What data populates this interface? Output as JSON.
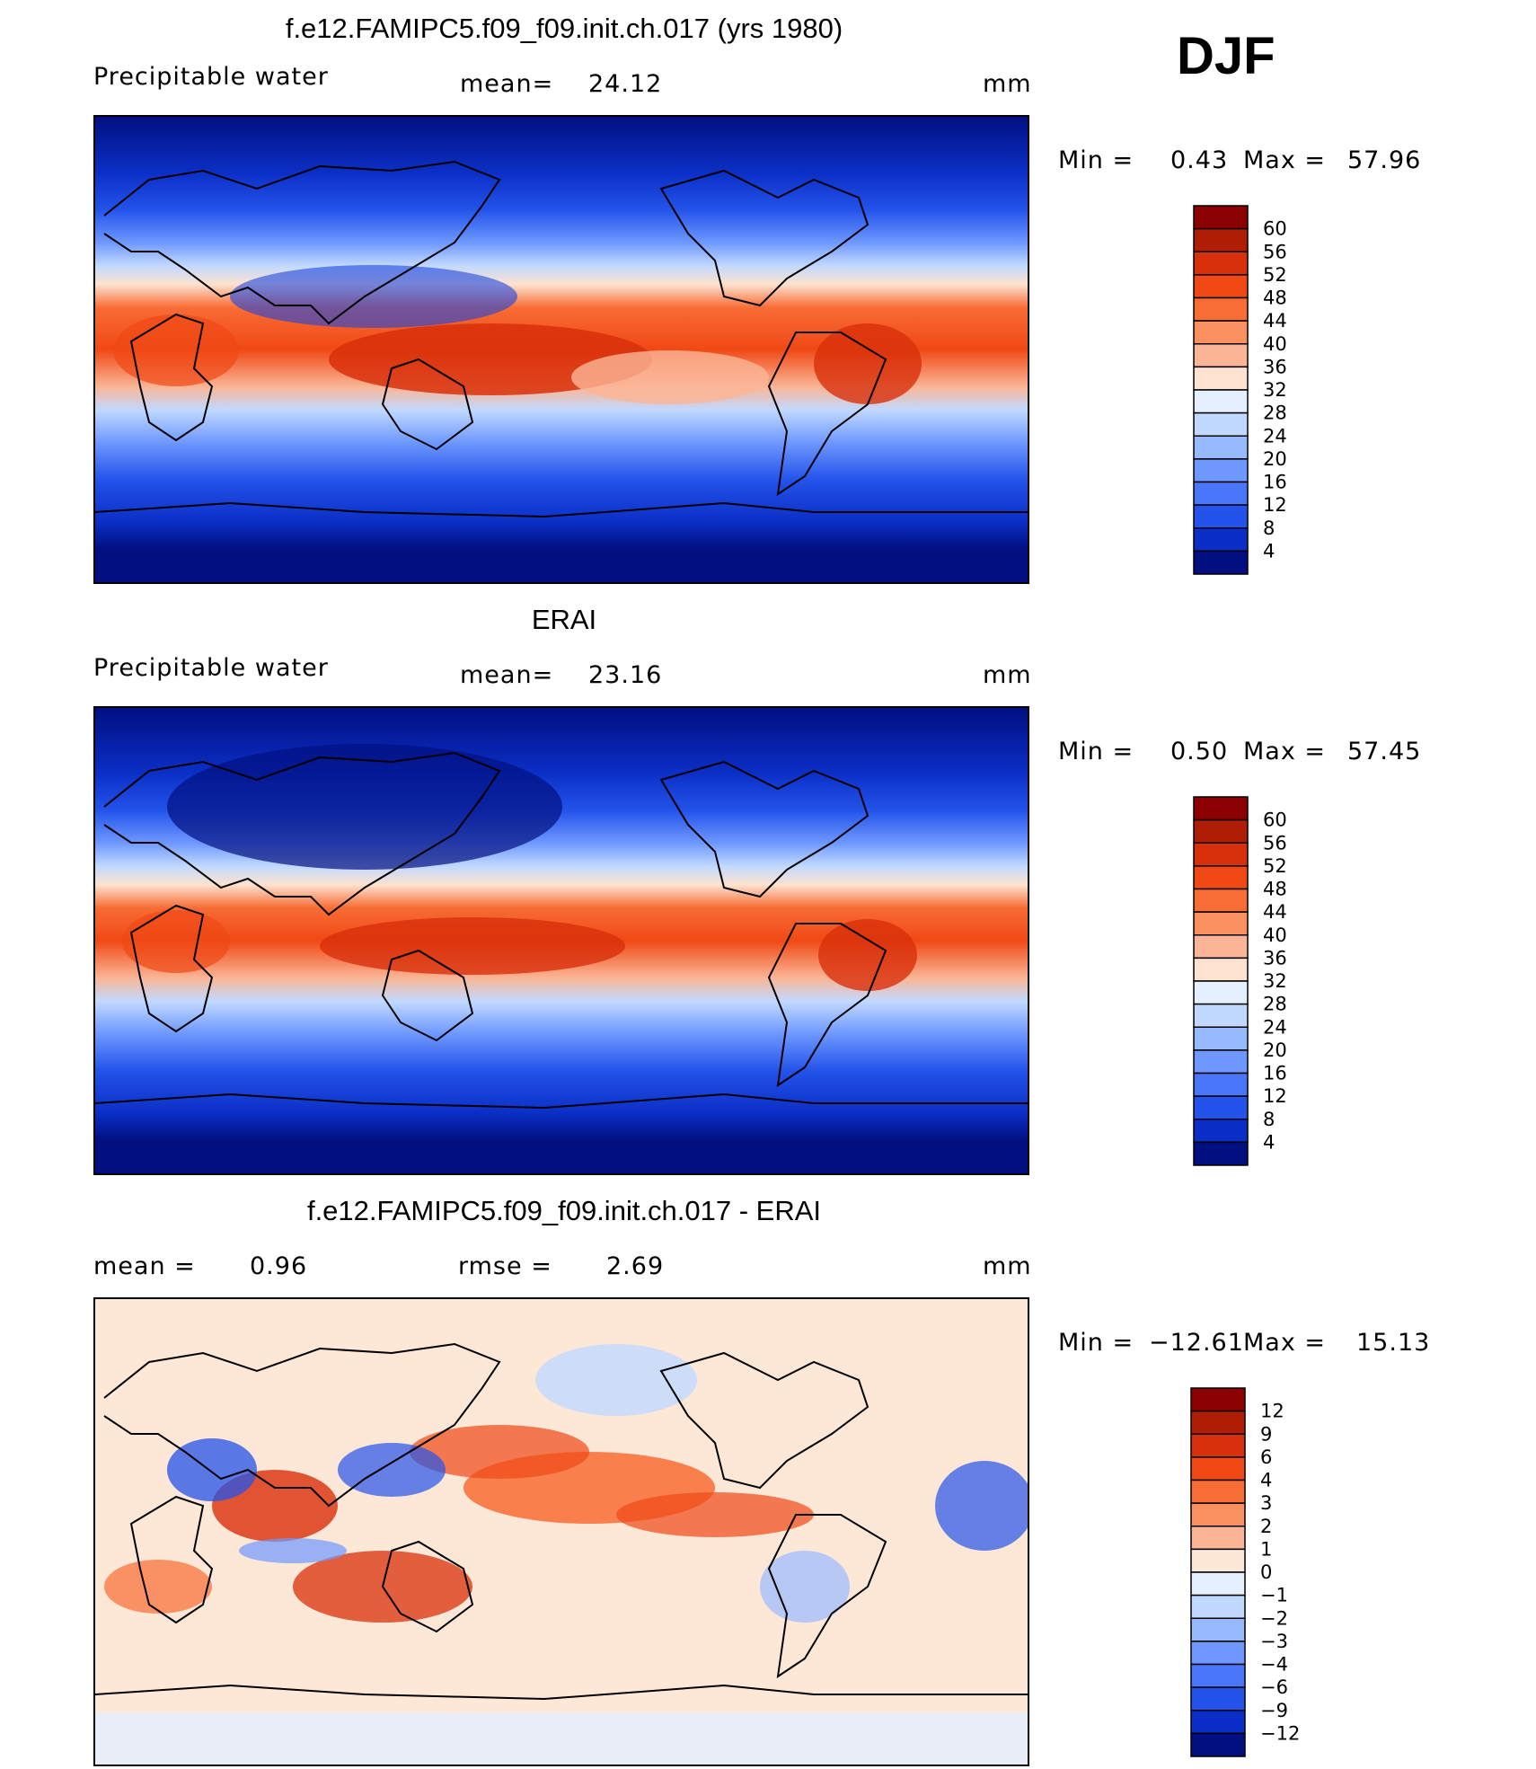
{
  "season": "DJF",
  "units": "mm",
  "panels": [
    {
      "id": "model",
      "title": "f.e12.FAMIPC5.f09_f09.init.ch.017 (yrs 1980)",
      "variable": "Precipitable water",
      "stat1_label": "mean=",
      "stat1_value": "24.12",
      "stat2_label": "",
      "stat2_value": "",
      "units": "mm",
      "min_label": "Min =",
      "min_value": "0.43",
      "max_label": "Max =",
      "max_value": "57.96",
      "colorbar": {
        "levels": [
          "60",
          "56",
          "52",
          "48",
          "44",
          "40",
          "36",
          "32",
          "28",
          "24",
          "20",
          "16",
          "12",
          "8",
          "4"
        ],
        "colors": [
          "#8b0000",
          "#b01d05",
          "#d8300a",
          "#f04915",
          "#f86c35",
          "#fa8f60",
          "#fbb596",
          "#fde2cf",
          "#e4efff",
          "#c1d9ff",
          "#97baff",
          "#6e98ff",
          "#4a76fb",
          "#2353ea",
          "#0b2fc6",
          "#010f80"
        ]
      }
    },
    {
      "id": "obs",
      "title": "ERAI",
      "variable": "Precipitable water",
      "stat1_label": "mean=",
      "stat1_value": "23.16",
      "stat2_label": "",
      "stat2_value": "",
      "units": "mm",
      "min_label": "Min =",
      "min_value": "0.50",
      "max_label": "Max =",
      "max_value": "57.45",
      "colorbar": {
        "levels": [
          "60",
          "56",
          "52",
          "48",
          "44",
          "40",
          "36",
          "32",
          "28",
          "24",
          "20",
          "16",
          "12",
          "8",
          "4"
        ],
        "colors": [
          "#8b0000",
          "#b01d05",
          "#d8300a",
          "#f04915",
          "#f86c35",
          "#fa8f60",
          "#fbb596",
          "#fde2cf",
          "#e4efff",
          "#c1d9ff",
          "#97baff",
          "#6e98ff",
          "#4a76fb",
          "#2353ea",
          "#0b2fc6",
          "#010f80"
        ]
      }
    },
    {
      "id": "diff",
      "title": "f.e12.FAMIPC5.f09_f09.init.ch.017 - ERAI",
      "variable": "",
      "stat1_label": "mean =",
      "stat1_value": "0.96",
      "stat2_label": "rmse =",
      "stat2_value": "2.69",
      "units": "mm",
      "min_label": "Min =",
      "min_value": "−12.61",
      "max_label": "Max =",
      "max_value": "15.13",
      "colorbar": {
        "levels": [
          "12",
          "9",
          "6",
          "4",
          "3",
          "2",
          "1",
          "0",
          "−1",
          "−2",
          "−3",
          "−4",
          "−6",
          "−9",
          "−12"
        ],
        "colors": [
          "#8b0000",
          "#b01d05",
          "#d8300a",
          "#f04915",
          "#f86c35",
          "#fa8f60",
          "#fbb596",
          "#fde7d6",
          "#e4efff",
          "#c1d9ff",
          "#97baff",
          "#6e98ff",
          "#4a76fb",
          "#2353ea",
          "#0b2fc6",
          "#010f80"
        ]
      }
    }
  ],
  "chart_data": [
    {
      "type": "heatmap",
      "title": "f.e12.FAMIPC5.f09_f09.init.ch.017 (yrs 1980)",
      "variable": "Precipitable water",
      "units": "mm",
      "mean": 24.12,
      "min": 0.43,
      "max": 57.96,
      "color_levels": [
        4,
        8,
        12,
        16,
        20,
        24,
        28,
        32,
        36,
        40,
        44,
        48,
        52,
        56,
        60
      ],
      "projection": "cylindrical equidistant, Pacific-centered",
      "pattern": "moist tropics (>40 mm) over Maritime Continent, western Pacific, Amazon, central Africa; dry polar regions (<8 mm)"
    },
    {
      "type": "heatmap",
      "title": "ERAI",
      "variable": "Precipitable water",
      "units": "mm",
      "mean": 23.16,
      "min": 0.5,
      "max": 57.45,
      "color_levels": [
        4,
        8,
        12,
        16,
        20,
        24,
        28,
        32,
        36,
        40,
        44,
        48,
        52,
        56,
        60
      ],
      "projection": "cylindrical equidistant, Pacific-centered"
    },
    {
      "type": "heatmap",
      "title": "f.e12.FAMIPC5.f09_f09.init.ch.017 - ERAI",
      "units": "mm",
      "mean": 0.96,
      "rmse": 2.69,
      "min": -12.61,
      "max": 15.13,
      "color_levels": [
        -12,
        -9,
        -6,
        -4,
        -3,
        -2,
        -1,
        0,
        1,
        2,
        3,
        4,
        6,
        9,
        12
      ],
      "pattern": "positive bias over tropical Pacific, India, Australia; negative bias over Arabian/Asian monsoon margins and northern Atlantic"
    }
  ]
}
